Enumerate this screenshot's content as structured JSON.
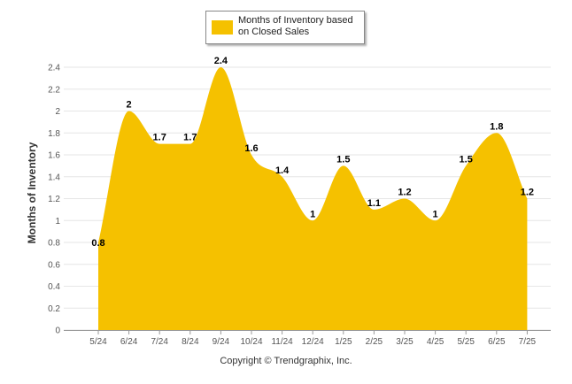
{
  "chart_data": {
    "type": "area",
    "categories": [
      "5/24",
      "6/24",
      "7/24",
      "8/24",
      "9/24",
      "10/24",
      "11/24",
      "12/24",
      "1/25",
      "2/25",
      "3/25",
      "4/25",
      "5/25",
      "6/25",
      "7/25"
    ],
    "series": [
      {
        "name": "Months of Inventory based on Closed Sales",
        "values": [
          0.8,
          2,
          1.7,
          1.7,
          2.4,
          1.6,
          1.4,
          1,
          1.5,
          1.1,
          1.2,
          1,
          1.5,
          1.8,
          1.2
        ],
        "color": "#f5c100"
      }
    ],
    "data_labels": [
      "0.8",
      "2",
      "1.7",
      "1.7",
      "2.4",
      "1.6",
      "1.4",
      "1",
      "1.5",
      "1.1",
      "1.2",
      "1",
      "1.5",
      "1.8",
      "1.2"
    ],
    "ylabel": "Months of Inventory",
    "xlabel": "",
    "ylim": [
      0,
      2.4
    ],
    "yticks": [
      "0",
      "0.2",
      "0.4",
      "0.6",
      "0.8",
      "1",
      "1.2",
      "1.4",
      "1.6",
      "1.8",
      "2",
      "2.2",
      "2.4"
    ],
    "grid": true,
    "legend_position": "top-center"
  },
  "legend": {
    "label": "Months of Inventory based on Closed Sales"
  },
  "footer": {
    "copyright": "Copyright © Trendgraphix, Inc."
  }
}
